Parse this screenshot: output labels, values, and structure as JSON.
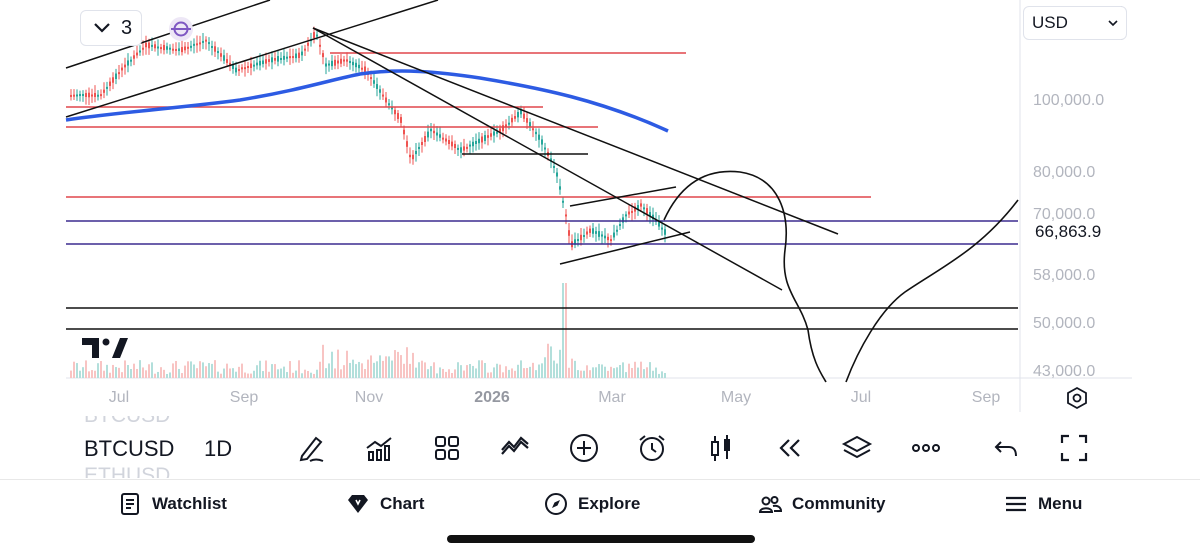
{
  "header": {
    "collapse_count": "3",
    "currency": "USD"
  },
  "price_axis": {
    "labels": [
      "100,000.0",
      "80,000.0",
      "70,000.0",
      "58,000.0",
      "50,000.0",
      "43,000.0"
    ],
    "current_price": "66,863.9"
  },
  "time_axis": {
    "labels": [
      "Jul",
      "Sep",
      "Nov",
      "2026",
      "Mar",
      "May",
      "Jul",
      "Sep"
    ]
  },
  "toolbar": {
    "symbol": "BTCUSD",
    "symbol_above": "BTCUSD",
    "symbol_below": "ETHUSD",
    "interval": "1D"
  },
  "nav": {
    "watchlist": "Watchlist",
    "chart": "Chart",
    "explore": "Explore",
    "community": "Community",
    "menu": "Menu"
  },
  "icons": {
    "collapse": "chevron-down-icon",
    "sync": "sync-icon",
    "scroll_latest": "arrow-down-icon",
    "fullscreen_view": "frame-icon",
    "settings": "gear-icon",
    "draw": "pen-icon",
    "indicators": "indicators-icon",
    "layouts": "grid-icon",
    "compare": "compare-icon",
    "add": "plus-circle-icon",
    "alert": "alarm-clock-icon",
    "chart_type": "candles-icon",
    "replay": "rewind-icon",
    "layers": "layers-icon",
    "more": "more-icon",
    "undo": "undo-icon",
    "fullscreen": "fullscreen-icon",
    "watchlist": "list-icon",
    "chart_nav": "diamond-icon",
    "explore_nav": "compass-icon",
    "community_nav": "users-icon",
    "menu_nav": "hamburger-icon"
  },
  "colors": {
    "accent": "#2962ff",
    "up": "#26a69a",
    "down": "#ef5350",
    "support_red": "#e0464b",
    "support_purple": "#3b2b8f",
    "ma": "#2d5be3"
  }
}
